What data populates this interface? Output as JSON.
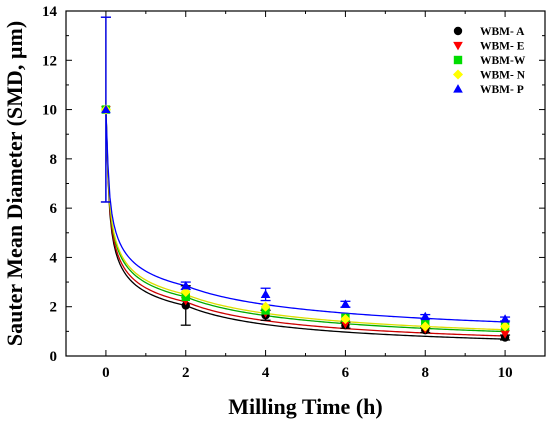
{
  "chart_data": {
    "type": "scatter",
    "xlabel": "Milling Time (h)",
    "ylabel": "Sauter Mean Diameter (SMD, µm)",
    "xlim": [
      -1,
      11
    ],
    "ylim": [
      0,
      14
    ],
    "xticks": [
      0,
      2,
      4,
      6,
      8,
      10
    ],
    "yticks": [
      0,
      2,
      4,
      6,
      8,
      10,
      12,
      14
    ],
    "grid": false,
    "legend_position": "top-right",
    "series": [
      {
        "name": "WBM- A",
        "marker": "circle",
        "color": "#000000",
        "x": [
          0,
          2,
          4,
          6,
          8,
          10
        ],
        "y": [
          10.0,
          2.05,
          1.65,
          1.25,
          1.05,
          0.75
        ],
        "yerr": [
          3.75,
          0.8,
          0.2,
          0.12,
          0.1,
          0.1
        ]
      },
      {
        "name": "WBM- E",
        "marker": "triangle-down",
        "color": "#ff0000",
        "x": [
          0,
          2,
          4,
          6,
          8,
          10
        ],
        "y": [
          10.0,
          2.25,
          1.75,
          1.3,
          1.1,
          0.9
        ]
      },
      {
        "name": "WBM-W",
        "marker": "square",
        "color": "#00dd00",
        "x": [
          0,
          2,
          4,
          6,
          8,
          10
        ],
        "y": [
          10.0,
          2.4,
          1.85,
          1.55,
          1.3,
          1.2
        ]
      },
      {
        "name": "WBM- N",
        "marker": "diamond",
        "color": "#ffff00",
        "x": [
          0,
          2,
          4,
          6,
          8,
          10
        ],
        "y": [
          10.0,
          2.6,
          2.0,
          1.5,
          1.2,
          1.2
        ]
      },
      {
        "name": "WBM- P",
        "marker": "triangle-up",
        "color": "#0000ff",
        "x": [
          0,
          2,
          4,
          6,
          8,
          10
        ],
        "y": [
          10.0,
          2.85,
          2.5,
          2.1,
          1.6,
          1.5
        ],
        "yerr": [
          3.75,
          0.15,
          0.25,
          0.12,
          0.08,
          0.08
        ]
      }
    ],
    "fit_curves": [
      {
        "series": "WBM- A",
        "color": "#000000",
        "a": 2.05,
        "b": 0.68
      },
      {
        "series": "WBM- E",
        "color": "#cc0000",
        "a": 2.2,
        "b": 0.62
      },
      {
        "series": "WBM-W",
        "color": "#00aa00",
        "a": 2.4,
        "b": 0.55
      },
      {
        "series": "WBM- N",
        "color": "#dddd00",
        "a": 2.5,
        "b": 0.53
      },
      {
        "series": "WBM- P",
        "color": "#0000ff",
        "a": 2.85,
        "b": 0.45
      }
    ]
  }
}
